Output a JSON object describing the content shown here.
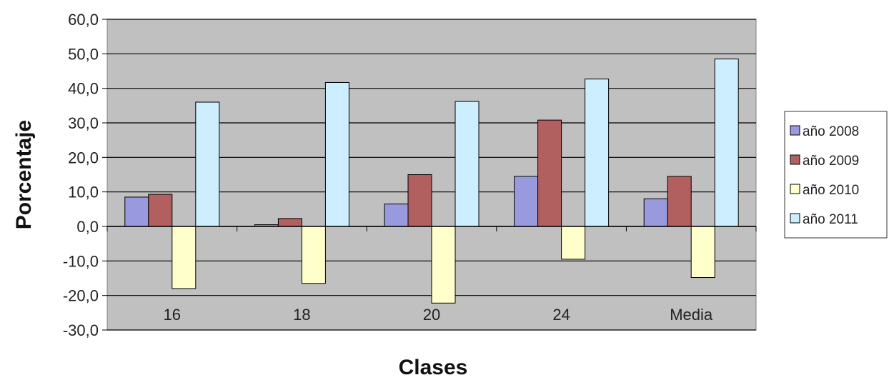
{
  "chart_data": {
    "type": "bar",
    "categories": [
      "16",
      "18",
      "20",
      "24",
      "Media"
    ],
    "series": [
      {
        "name": "año 2008",
        "values": [
          8.5,
          0.5,
          6.5,
          14.5,
          8.0
        ],
        "color": "#9999dd"
      },
      {
        "name": "año 2009",
        "values": [
          9.3,
          2.3,
          15.0,
          30.8,
          14.5
        ],
        "color": "#b15f5f"
      },
      {
        "name": "año 2010",
        "values": [
          -18.0,
          -16.5,
          -22.2,
          -9.5,
          -14.8
        ],
        "color": "#ffffcc"
      },
      {
        "name": "año 2011",
        "values": [
          36.0,
          41.7,
          36.2,
          42.7,
          48.5
        ],
        "color": "#cceeff"
      }
    ],
    "xlabel": "Clases",
    "ylabel": "Porcentaje",
    "ylim": [
      -30,
      60
    ],
    "yticks": [
      "-30,0",
      "-20,0",
      "-10,0",
      "0,0",
      "10,0",
      "20,0",
      "30,0",
      "40,0",
      "50,0",
      "60,0"
    ],
    "grid": true,
    "plot_background": "#c0c0c0",
    "legend_position": "right"
  }
}
